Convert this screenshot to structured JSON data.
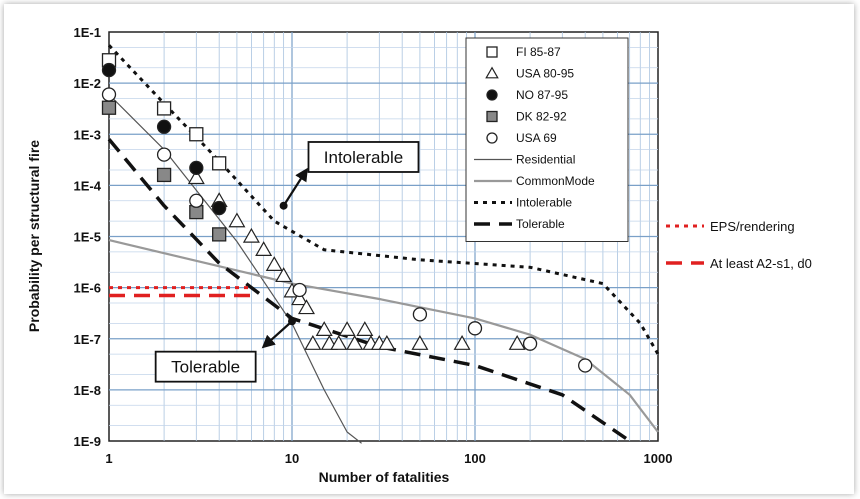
{
  "chart_data": {
    "type": "scatter",
    "title": "",
    "xlabel": "Number of fatalities",
    "ylabel": "Probability per structural fire",
    "x_scale": "log",
    "y_scale": "log",
    "xlim": [
      1,
      1000
    ],
    "ylim": [
      1e-09,
      0.1
    ],
    "grid": true,
    "legend_position": "top-right",
    "x_tick_labels": [
      {
        "value": 1,
        "label": "1"
      },
      {
        "value": 10,
        "label": "10"
      },
      {
        "value": 100,
        "label": "100"
      },
      {
        "value": 1000,
        "label": "1000"
      }
    ],
    "y_tick_labels": [
      {
        "value": 0.1,
        "label": "1E-1"
      },
      {
        "value": 0.01,
        "label": "1E-2"
      },
      {
        "value": 0.001,
        "label": "1E-3"
      },
      {
        "value": 0.0001,
        "label": "1E-4"
      },
      {
        "value": 1e-05,
        "label": "1E-5"
      },
      {
        "value": 1e-06,
        "label": "1E-6"
      },
      {
        "value": 1e-07,
        "label": "1E-7"
      },
      {
        "value": 1e-08,
        "label": "1E-8"
      },
      {
        "value": 1e-09,
        "label": "1E-9"
      }
    ],
    "point_series": [
      {
        "name": "FI 85-87",
        "marker": "square-open",
        "color": "#222222",
        "points": [
          [
            1,
            0.028
          ],
          [
            2,
            0.0032
          ],
          [
            3,
            0.001
          ],
          [
            4,
            0.00027
          ]
        ]
      },
      {
        "name": "USA 80-95",
        "marker": "triangle-open",
        "color": "#222222",
        "points": [
          [
            3,
            0.00014
          ],
          [
            4,
            5e-05
          ],
          [
            5,
            2e-05
          ],
          [
            6,
            1e-05
          ],
          [
            7,
            5.5e-06
          ],
          [
            8,
            2.8e-06
          ],
          [
            9,
            1.7e-06
          ],
          [
            10,
            8.5e-07
          ],
          [
            11,
            6e-07
          ],
          [
            12,
            4e-07
          ],
          [
            13,
            8e-08
          ],
          [
            15,
            1.5e-07
          ],
          [
            16,
            8e-08
          ],
          [
            18,
            8e-08
          ],
          [
            20,
            1.5e-07
          ],
          [
            22,
            8e-08
          ],
          [
            25,
            1.5e-07
          ],
          [
            27,
            8e-08
          ],
          [
            30,
            8e-08
          ],
          [
            33,
            8e-08
          ],
          [
            50,
            8e-08
          ],
          [
            85,
            8e-08
          ],
          [
            170,
            8e-08
          ]
        ]
      },
      {
        "name": "NO 87-95",
        "marker": "circle-filled",
        "color": "#111111",
        "points": [
          [
            1,
            0.018
          ],
          [
            2,
            0.0014
          ],
          [
            3,
            0.00022
          ],
          [
            4,
            3.6e-05
          ]
        ]
      },
      {
        "name": "DK 82-92",
        "marker": "square-filled",
        "color": "#888888",
        "points": [
          [
            1,
            0.0033
          ],
          [
            2,
            0.00016
          ],
          [
            3,
            3e-05
          ],
          [
            4,
            1.1e-05
          ]
        ]
      },
      {
        "name": "USA 69",
        "marker": "circle-open",
        "color": "#222222",
        "points": [
          [
            1,
            0.006
          ],
          [
            2,
            0.0004
          ],
          [
            3,
            5e-05
          ],
          [
            11,
            9e-07
          ],
          [
            50,
            3e-07
          ],
          [
            100,
            1.6e-07
          ],
          [
            200,
            8e-08
          ],
          [
            400,
            3e-08
          ]
        ]
      }
    ],
    "line_series": [
      {
        "name": "Residential",
        "style": "solid-thin",
        "color": "#555555",
        "points": [
          [
            1,
            0.006
          ],
          [
            2,
            0.0005
          ],
          [
            3,
            8e-05
          ],
          [
            5,
            8e-06
          ],
          [
            10,
            2e-07
          ],
          [
            15,
            1e-08
          ],
          [
            20,
            1.5e-09
          ],
          [
            24,
            9e-10
          ]
        ]
      },
      {
        "name": "CommonMode",
        "style": "solid-thick",
        "color": "#999999",
        "points": [
          [
            1,
            8.5e-06
          ],
          [
            10,
            1.2e-06
          ],
          [
            30,
            6e-07
          ],
          [
            100,
            2.5e-07
          ],
          [
            200,
            1.2e-07
          ],
          [
            400,
            4e-08
          ],
          [
            700,
            8e-09
          ],
          [
            1000,
            1.5e-09
          ]
        ]
      },
      {
        "name": "Intolerable",
        "style": "dotted",
        "color": "#111111",
        "points": [
          [
            1,
            0.055
          ],
          [
            2,
            0.004
          ],
          [
            4,
            0.0003
          ],
          [
            8,
            2e-05
          ],
          [
            15,
            5.5e-06
          ],
          [
            50,
            3.5e-06
          ],
          [
            200,
            2.5e-06
          ],
          [
            500,
            1.2e-06
          ],
          [
            800,
            2e-07
          ],
          [
            1000,
            5e-08
          ]
        ]
      },
      {
        "name": "Tolerable",
        "style": "dashed",
        "color": "#111111",
        "points": [
          [
            1,
            0.0008
          ],
          [
            2,
            4e-05
          ],
          [
            4,
            3e-06
          ],
          [
            10,
            2.5e-07
          ],
          [
            30,
            7e-08
          ],
          [
            100,
            3e-08
          ],
          [
            300,
            8e-09
          ],
          [
            700,
            1e-09
          ]
        ]
      }
    ],
    "reference_lines": [
      {
        "name": "EPS/rendering",
        "style": "dotted",
        "color": "#e02020",
        "y": 1e-06,
        "x_range": [
          1,
          6
        ]
      },
      {
        "name": "At least A2-s1, d0",
        "style": "dashed",
        "color": "#e02020",
        "y": 7e-07,
        "x_range": [
          1,
          6
        ]
      }
    ],
    "annotations": [
      {
        "text": "Intolerable",
        "arrow_from": [
          9,
          4e-05
        ],
        "arrow_to": [
          12,
          0.0002
        ]
      },
      {
        "text": "Tolerable",
        "arrow_from": [
          10,
          2.2e-07
        ],
        "arrow_to": [
          7,
          7e-08
        ]
      }
    ]
  }
}
